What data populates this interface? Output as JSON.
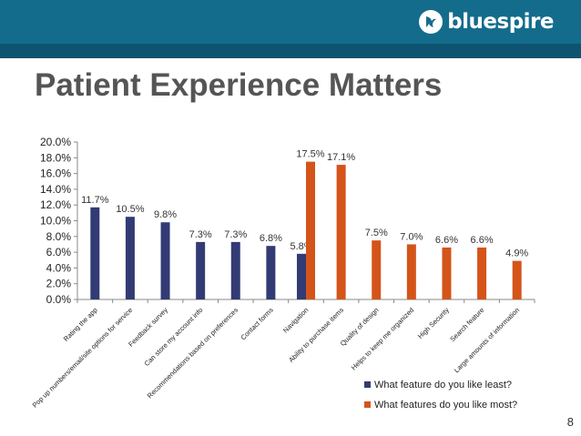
{
  "brand": {
    "name": "bluespire"
  },
  "slide": {
    "title": "Patient Experience Matters",
    "page_number": "8"
  },
  "colors": {
    "header": "#146c8c",
    "header_stripe": "#0e5470",
    "least": "#323b74",
    "most": "#d4541a"
  },
  "chart_data": {
    "type": "bar",
    "title": "",
    "xlabel": "",
    "ylabel": "",
    "ylim": [
      0,
      20
    ],
    "yticks": [
      "0.0%",
      "2.0%",
      "4.0%",
      "6.0%",
      "8.0%",
      "10.0%",
      "12.0%",
      "14.0%",
      "16.0%",
      "18.0%",
      "20.0%"
    ],
    "grid": false,
    "legend_position": "bottom-right",
    "categories": [
      "Rating the app",
      "Pop up numbers/email/site options for service",
      "Feedback survey",
      "Can store my account info",
      "Recommendations based on preferences",
      "Contact forms",
      "Navigation",
      "Ability to purchase items",
      "Quality of design",
      "Helps to keep me organized",
      "High Security",
      "Search feature",
      "Large amounts of information"
    ],
    "series": [
      {
        "name": "What feature do you like least?",
        "color": "#323b74",
        "values": [
          11.7,
          10.5,
          9.8,
          7.3,
          7.3,
          6.8,
          5.8,
          null,
          null,
          null,
          null,
          null,
          null
        ],
        "labels": [
          "11.7%",
          "10.5%",
          "9.8%",
          "7.3%",
          "7.3%",
          "6.8%",
          "5.8%",
          "",
          "",
          "",
          "",
          "",
          ""
        ]
      },
      {
        "name": "What features do you like most?",
        "color": "#d4541a",
        "values": [
          null,
          null,
          null,
          null,
          null,
          null,
          17.5,
          17.1,
          7.5,
          7.0,
          6.6,
          6.6,
          4.9
        ],
        "labels": [
          "",
          "",
          "",
          "",
          "",
          "",
          "17.5%",
          "17.1%",
          "7.5%",
          "7.0%",
          "6.6%",
          "6.6%",
          "4.9%"
        ]
      }
    ]
  }
}
